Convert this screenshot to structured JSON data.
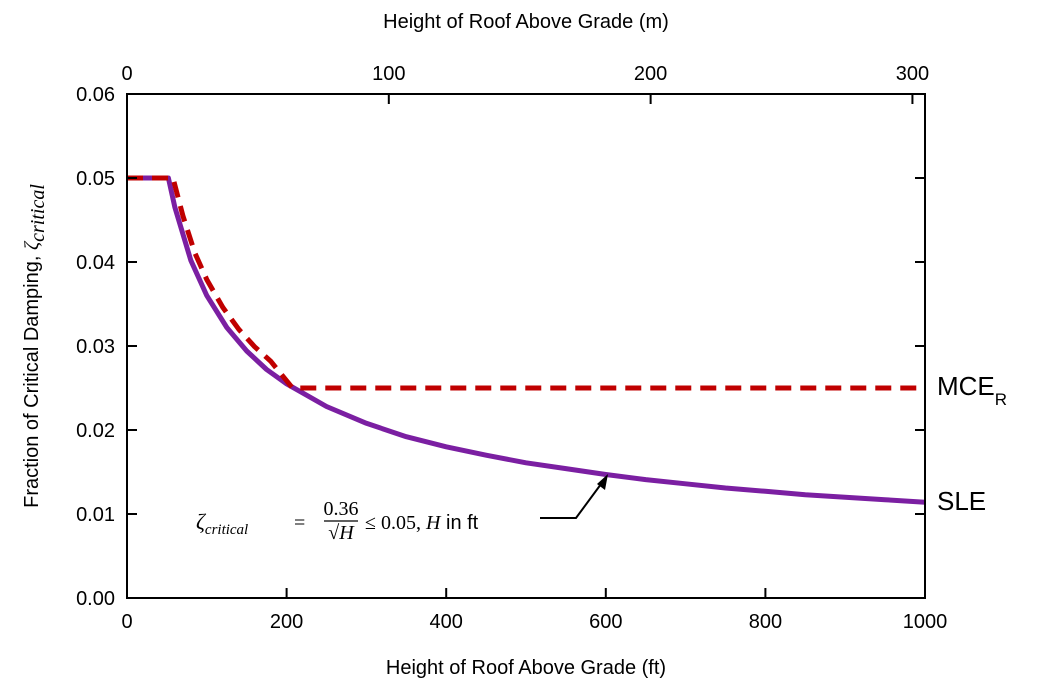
{
  "chart_data": {
    "type": "line",
    "title": "",
    "xlabel": "Height of Roof Above Grade (ft)",
    "x2label": "Height of Roof Above Grade (m)",
    "ylabel_text": "Fraction of Critical Damping, ",
    "ylabel_symbol": "ζ",
    "ylabel_subscript": "critical",
    "xlim": [
      0,
      1000
    ],
    "ylim": [
      0,
      0.06
    ],
    "x2lim_m": [
      0,
      304.8
    ],
    "x_ticks": [
      0,
      200,
      400,
      600,
      800,
      1000
    ],
    "x_tick_labels": [
      "0",
      "200",
      "400",
      "600",
      "800",
      "1000"
    ],
    "y_ticks": [
      0,
      0.01,
      0.02,
      0.03,
      0.04,
      0.05,
      0.06
    ],
    "y_tick_labels": [
      "0.00",
      "0.01",
      "0.02",
      "0.03",
      "0.04",
      "0.05",
      "0.06"
    ],
    "x2_ticks_m": [
      0,
      100,
      200,
      300
    ],
    "x2_tick_labels": [
      "0",
      "100",
      "200",
      "300"
    ],
    "grid": false,
    "series": [
      {
        "name": "SLE",
        "color": "#7B1FA2",
        "style": "solid",
        "x": [
          0,
          51.84,
          60,
          80,
          100,
          125,
          150,
          175,
          200,
          250,
          300,
          350,
          400,
          450,
          500,
          550,
          600,
          650,
          700,
          750,
          800,
          850,
          900,
          950,
          1000
        ],
        "y": [
          0.05,
          0.05,
          0.0465,
          0.0402,
          0.036,
          0.0322,
          0.0294,
          0.0272,
          0.0255,
          0.0228,
          0.0208,
          0.0192,
          0.018,
          0.017,
          0.0161,
          0.0154,
          0.0147,
          0.0141,
          0.0136,
          0.0131,
          0.0127,
          0.0123,
          0.012,
          0.0117,
          0.0114
        ]
      },
      {
        "name": "MCE",
        "name_subscript": "R",
        "color": "#C00000",
        "style": "dashed",
        "x": [
          0,
          57.6,
          70,
          85,
          100,
          120,
          140,
          160,
          180,
          207.4,
          1000
        ],
        "y": [
          0.05,
          0.05,
          0.0455,
          0.0411,
          0.0379,
          0.0346,
          0.032,
          0.0299,
          0.0282,
          0.025,
          0.025
        ]
      }
    ],
    "annotation": {
      "lhs_symbol": "ζ",
      "lhs_subscript": "critical",
      "equals": "=",
      "numerator": "0.36",
      "denominator": "√H",
      "rest": "≤ 0.05, ",
      "var": "H",
      "unit": " in ft",
      "arrow_target": [
        600,
        0.0147
      ]
    }
  }
}
